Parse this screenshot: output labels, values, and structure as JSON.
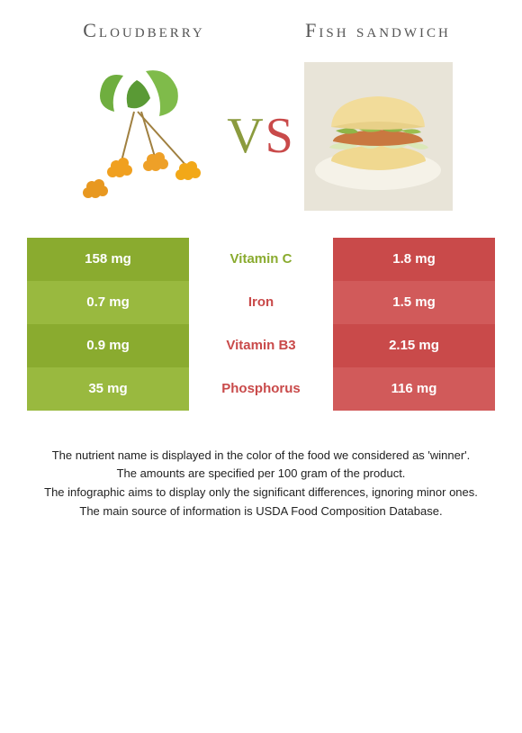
{
  "titles": {
    "left": "Cloudberry",
    "right": "Fish sandwich"
  },
  "vs": {
    "v": "V",
    "s": "S"
  },
  "colors": {
    "left_food": "#8aab2f",
    "right_food": "#c94a4a",
    "left_bar_a": "#8aab2f",
    "left_bar_b": "#99b93f",
    "right_bar_a": "#c94a4a",
    "right_bar_b": "#d15a5a",
    "mid_bg": "#ffffff",
    "text_muted": "#555555"
  },
  "rows": [
    {
      "nutrient": "Vitamin C",
      "left": "158 mg",
      "right": "1.8 mg",
      "winner": "left"
    },
    {
      "nutrient": "Iron",
      "left": "0.7 mg",
      "right": "1.5 mg",
      "winner": "right"
    },
    {
      "nutrient": "Vitamin B3",
      "left": "0.9 mg",
      "right": "2.15 mg",
      "winner": "right"
    },
    {
      "nutrient": "Phosphorus",
      "left": "35 mg",
      "right": "116 mg",
      "winner": "right"
    }
  ],
  "footnotes": [
    "The nutrient name is displayed in the color of the food we considered as 'winner'.",
    "The amounts are specified per 100 gram of the product.",
    "The infographic aims to display only the significant differences, ignoring minor ones.",
    "The main source of information is USDA Food Composition Database."
  ]
}
